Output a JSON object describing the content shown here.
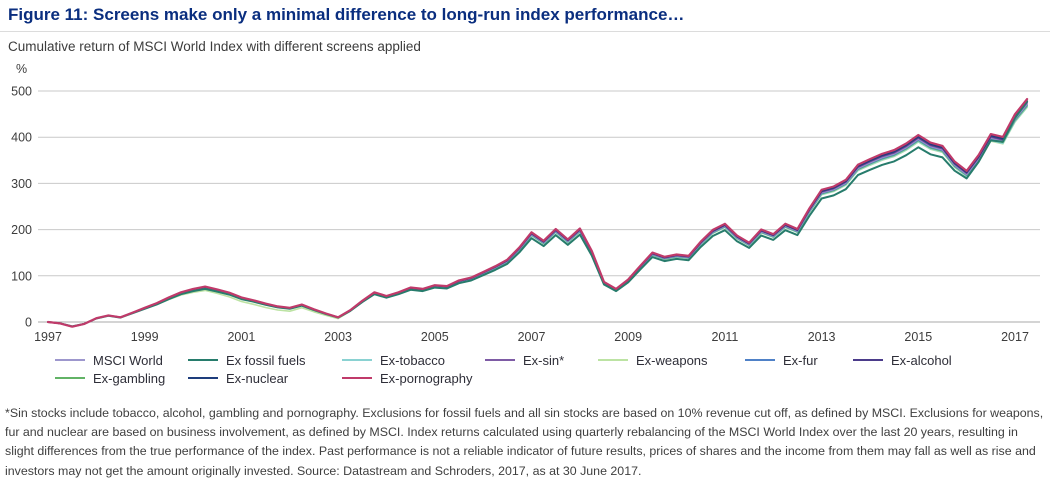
{
  "figure": {
    "title": "Figure 11: Screens make only a minimal difference to long-run index performance…",
    "subtitle": "Cumulative return of MSCI World Index with different screens applied",
    "unit_label": "%"
  },
  "chart_data": {
    "type": "line",
    "title": "Cumulative return of MSCI World Index with different screens applied",
    "ylabel": "%",
    "ylim": [
      -15,
      500
    ],
    "yticks": [
      0,
      100,
      200,
      300,
      400,
      500
    ],
    "xticks": [
      "1997",
      "1999",
      "2001",
      "2003",
      "2005",
      "2007",
      "2009",
      "2011",
      "2013",
      "2015",
      "2017"
    ],
    "frequency": "quarterly",
    "x_range": [
      "1997",
      "2017 (as at 30 June 2017)"
    ],
    "grid": "horizontal-only",
    "legend_position": "bottom",
    "base_values": [
      0,
      -3,
      -10,
      -4,
      8,
      14,
      10,
      20,
      30,
      40,
      52,
      63,
      70,
      75,
      69,
      62,
      52,
      46,
      39,
      33,
      30,
      37,
      27,
      18,
      10,
      25,
      45,
      63,
      55,
      63,
      73,
      70,
      78,
      76,
      88,
      94,
      106,
      118,
      132,
      158,
      190,
      172,
      197,
      175,
      198,
      150,
      85,
      70,
      90,
      119,
      147,
      138,
      143,
      140,
      170,
      195,
      208,
      183,
      168,
      196,
      186,
      208,
      197,
      241,
      280,
      287,
      301,
      333,
      345,
      356,
      364,
      378,
      396,
      380,
      373,
      340,
      320,
      354,
      398,
      392,
      440,
      472
    ],
    "base_values_note": "MSCI World cumulative return %, quarterly 1997 to mid-2017; all screened series track it within roughly +/-2%",
    "series": [
      {
        "name": "MSCI World",
        "color": "#9d97cd",
        "factor": 0.0,
        "z": 5,
        "width": 1.6
      },
      {
        "name": "Ex fossil fuels",
        "color": "#277c6c",
        "factor": -0.045,
        "late_factor": 0.012,
        "z": 9,
        "width": 2.0
      },
      {
        "name": "Ex-tobacco",
        "color": "#8ad2d2",
        "factor": -0.013,
        "z": 2,
        "width": 1.6
      },
      {
        "name": "Ex-sin*",
        "color": "#7e5ba5",
        "factor": 0.005,
        "z": 6,
        "width": 1.6
      },
      {
        "name": "Ex-weapons",
        "color": "#bce3a3",
        "factor": -0.016,
        "dip": {
          "from": 8,
          "to": 26,
          "amount": -7
        },
        "z": 1,
        "width": 1.6
      },
      {
        "name": "Ex-fur",
        "color": "#4f81c7",
        "factor": -0.004,
        "z": 4,
        "width": 1.6
      },
      {
        "name": "Ex-alcohol",
        "color": "#4b3b8a",
        "factor": 0.009,
        "z": 7,
        "width": 1.6
      },
      {
        "name": "Ex-gambling",
        "color": "#62b366",
        "factor": -0.008,
        "z": 3,
        "width": 1.6
      },
      {
        "name": "Ex-nuclear",
        "color": "#1e3d7c",
        "factor": 0.014,
        "z": 8,
        "width": 1.6
      },
      {
        "name": "Ex-pornography",
        "color": "#c03a6a",
        "factor": 0.022,
        "z": 10,
        "width": 2.2
      }
    ]
  },
  "footnote": "*Sin stocks include tobacco, alcohol, gambling and pornography. Exclusions for fossil fuels and all sin stocks are based on 10% revenue cut off, as defined by MSCI. Exclusions for weapons, fur and nuclear are based on business involvement, as defined by MSCI. Index returns calculated using quarterly rebalancing of the MSCI World Index over the last 20 years, resulting in slight differences from the true performance of the index. Past performance is not a reliable indicator of future results, prices of shares and the income from them may fall as well as rise and investors may not get the amount originally invested. Source: Datastream and Schroders, 2017, as at 30 June 2017."
}
